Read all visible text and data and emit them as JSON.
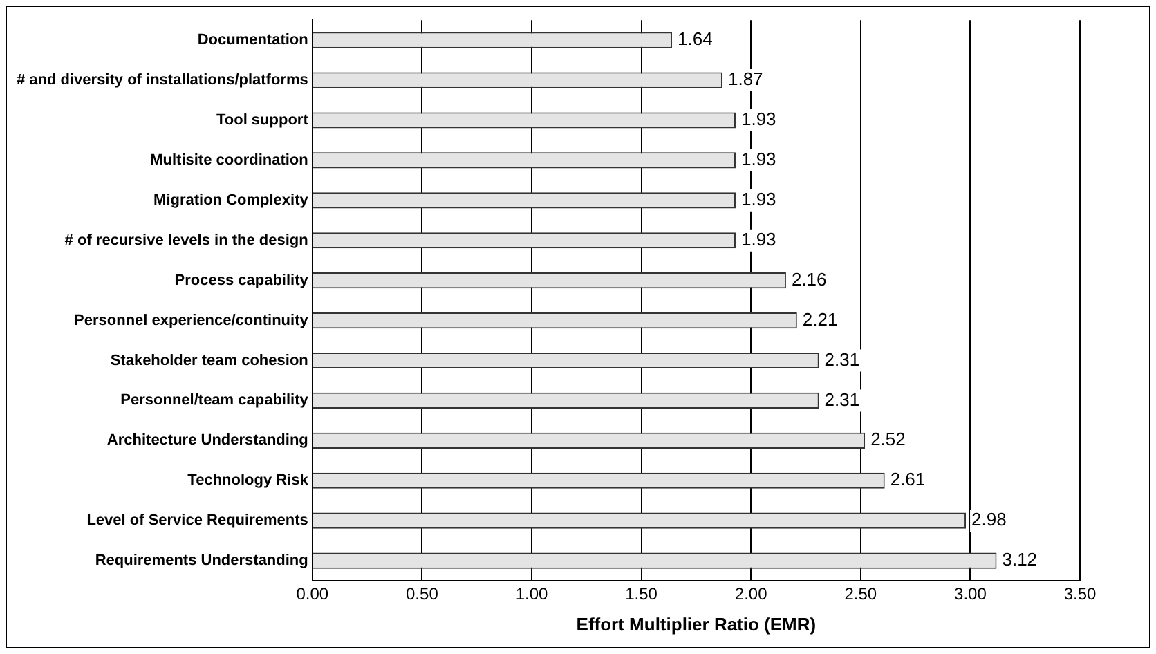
{
  "chart_data": {
    "type": "bar",
    "orientation": "horizontal",
    "xlabel": "Effort Multiplier Ratio (EMR)",
    "categories": [
      "Documentation",
      "# and diversity of installations/platforms",
      "Tool support",
      "Multisite coordination",
      "Migration Complexity",
      "# of recursive levels in the design",
      "Process capability",
      "Personnel experience/continuity",
      "Stakeholder team cohesion",
      "Personnel/team capability",
      "Architecture Understanding",
      "Technology Risk",
      "Level of Service Requirements",
      "Requirements Understanding"
    ],
    "values": [
      1.64,
      1.87,
      1.93,
      1.93,
      1.93,
      1.93,
      2.16,
      2.21,
      2.31,
      2.31,
      2.52,
      2.61,
      2.98,
      3.12
    ],
    "color": "#e4e4e4",
    "data_labels": true,
    "grid": "x",
    "xlim": [
      0,
      3.5
    ],
    "xticks": [
      {
        "value": 0,
        "label": "0.00"
      },
      {
        "value": 0.5,
        "label": "0.50"
      },
      {
        "value": 1,
        "label": "1.00"
      },
      {
        "value": 1.5,
        "label": "1.50"
      },
      {
        "value": 2,
        "label": "2.00"
      },
      {
        "value": 2.5,
        "label": "2.50"
      },
      {
        "value": 3,
        "label": "3.00"
      },
      {
        "value": 3.5,
        "label": "3.50"
      }
    ]
  }
}
